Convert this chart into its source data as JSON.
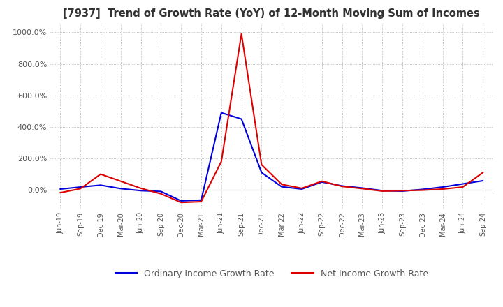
{
  "title": "[7937]  Trend of Growth Rate (YoY) of 12-Month Moving Sum of Incomes",
  "ylim": [
    -120,
    1050
  ],
  "yticks": [
    0,
    200,
    400,
    600,
    800,
    1000
  ],
  "ytick_labels": [
    "0.0%",
    "200.0%",
    "400.0%",
    "600.0%",
    "800.0%",
    "1000.0%"
  ],
  "background_color": "#ffffff",
  "grid_color": "#aaaaaa",
  "line_blue_color": "#0000dd",
  "line_red_color": "#dd0000",
  "legend_blue": "Ordinary Income Growth Rate",
  "legend_red": "Net Income Growth Rate",
  "x_labels": [
    "Jun-19",
    "Sep-19",
    "Dec-19",
    "Mar-20",
    "Jun-20",
    "Sep-20",
    "Dec-20",
    "Mar-21",
    "Jun-21",
    "Sep-21",
    "Dec-21",
    "Mar-22",
    "Jun-22",
    "Sep-22",
    "Dec-22",
    "Mar-23",
    "Jun-23",
    "Sep-23",
    "Dec-23",
    "Mar-24",
    "Jun-24",
    "Sep-24"
  ],
  "ordinary_income": [
    5.0,
    18.0,
    30.0,
    8.0,
    -5.0,
    -10.0,
    -70.0,
    -65.0,
    490.0,
    450.0,
    110.0,
    20.0,
    5.0,
    50.0,
    25.0,
    12.0,
    -5.0,
    -8.0,
    3.0,
    18.0,
    38.0,
    58.0
  ],
  "net_income": [
    -18.0,
    8.0,
    100.0,
    55.0,
    10.0,
    -25.0,
    -80.0,
    -75.0,
    180.0,
    990.0,
    160.0,
    35.0,
    10.0,
    55.0,
    22.0,
    8.0,
    -8.0,
    -5.0,
    -2.0,
    5.0,
    18.0,
    110.0
  ]
}
